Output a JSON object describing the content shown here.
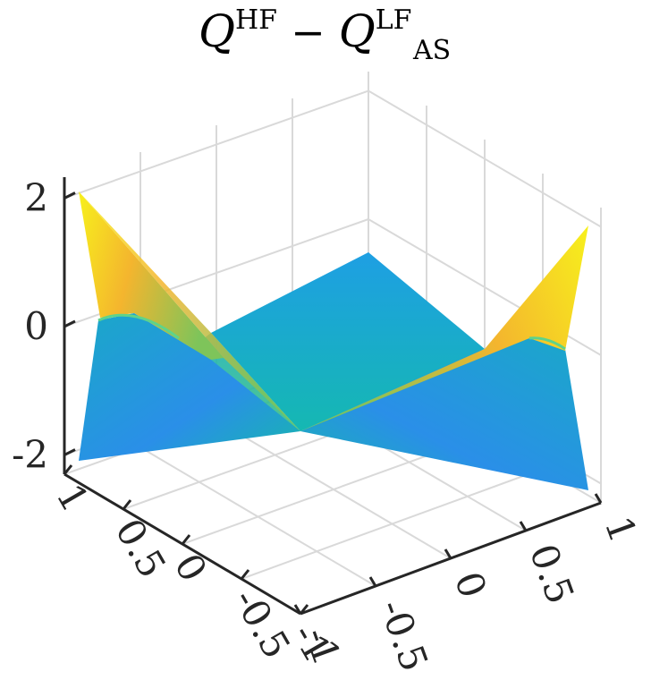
{
  "chart_data": {
    "type": "surface",
    "title": {
      "lhs": "Q",
      "lhs_sup": "HF",
      "op": "−",
      "rhs": "Q",
      "rhs_sup": "LF",
      "rhs_sub": "AS"
    },
    "xlabel": "",
    "ylabel": "",
    "zlabel": "",
    "xlim": [
      -1,
      1
    ],
    "ylim": [
      -1,
      1
    ],
    "zlim": [
      -2.3,
      2.3
    ],
    "x_ticks": [
      "-1",
      "-0.5",
      "0",
      "0.5",
      "1"
    ],
    "y_ticks": [
      "-1",
      "-0.5",
      "0",
      "0.5",
      "1"
    ],
    "z_ticks": [
      "-2",
      "0",
      "2"
    ],
    "grid": true,
    "colormap": "parula",
    "corner_values": {
      "x-1_y-1": -2.3,
      "x-1_y1": 2.2,
      "x1_y-1": 2.2,
      "x1_y1": -2.3,
      "center": 0.0
    },
    "colors": {
      "low": "#1a99e0",
      "mid": "#16b5b0",
      "high": "#f8f21a"
    }
  }
}
